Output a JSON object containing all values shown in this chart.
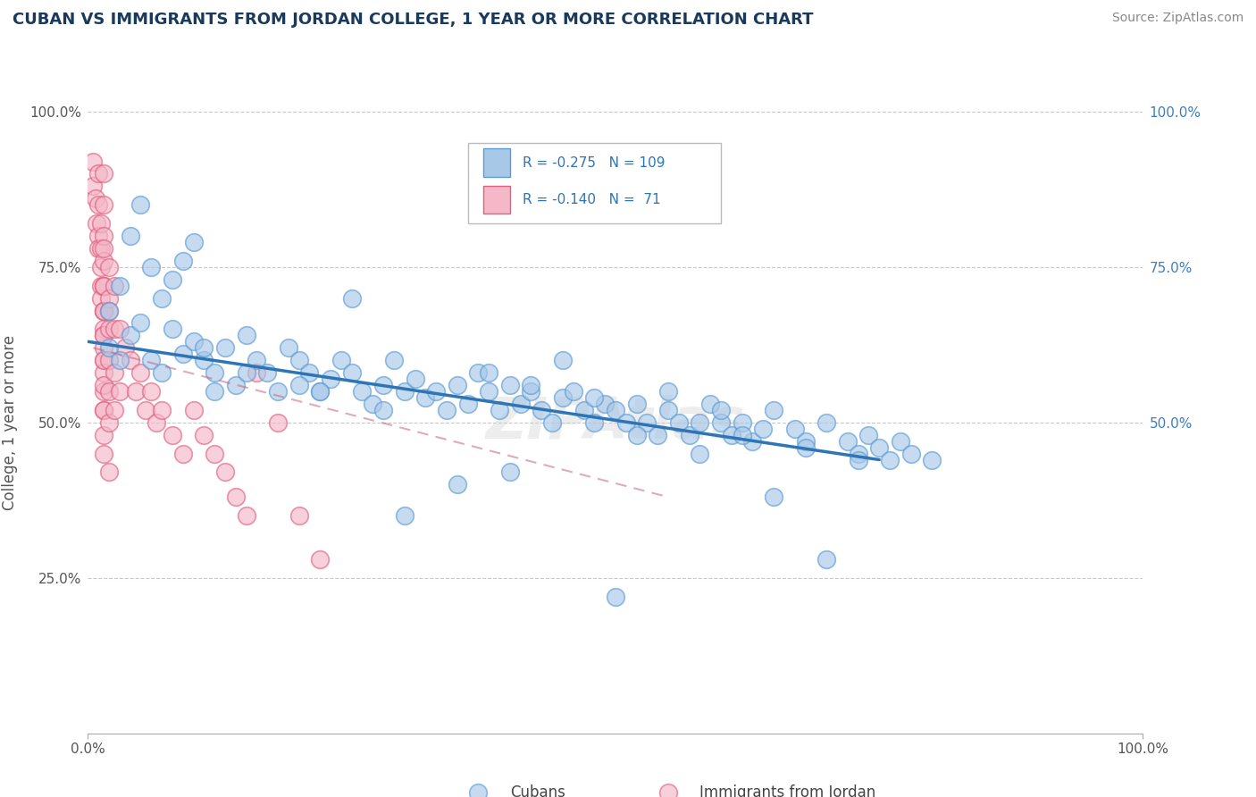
{
  "title": "CUBAN VS IMMIGRANTS FROM JORDAN COLLEGE, 1 YEAR OR MORE CORRELATION CHART",
  "source_text": "Source: ZipAtlas.com",
  "ylabel": "College, 1 year or more",
  "xlim": [
    0.0,
    1.0
  ],
  "ylim": [
    0.0,
    1.0
  ],
  "y_tick_positions": [
    0.25,
    0.5,
    0.75,
    1.0
  ],
  "y_tick_labels": [
    "25.0%",
    "50.0%",
    "75.0%",
    "100.0%"
  ],
  "right_y_tick_labels": [
    "50.0%",
    "75.0%",
    "100.0%"
  ],
  "right_y_tick_positions": [
    0.5,
    0.75,
    1.0
  ],
  "color_blue_fill": "#a8c8e8",
  "color_blue_edge": "#5b9bd5",
  "color_pink_fill": "#f4b8c8",
  "color_pink_edge": "#e06080",
  "color_line_blue": "#2e75b6",
  "color_line_pink": "#c05878",
  "watermark": "ZIPAtlas",
  "background_color": "#ffffff",
  "grid_color": "#bbbbbb",
  "cubans_x": [
    0.02,
    0.03,
    0.04,
    0.05,
    0.06,
    0.07,
    0.08,
    0.09,
    0.1,
    0.11,
    0.12,
    0.13,
    0.14,
    0.15,
    0.16,
    0.17,
    0.18,
    0.19,
    0.2,
    0.21,
    0.22,
    0.23,
    0.24,
    0.25,
    0.26,
    0.27,
    0.28,
    0.29,
    0.3,
    0.31,
    0.32,
    0.33,
    0.34,
    0.35,
    0.36,
    0.37,
    0.38,
    0.39,
    0.4,
    0.41,
    0.42,
    0.43,
    0.44,
    0.45,
    0.46,
    0.47,
    0.48,
    0.49,
    0.5,
    0.51,
    0.52,
    0.53,
    0.54,
    0.55,
    0.56,
    0.57,
    0.58,
    0.59,
    0.6,
    0.61,
    0.62,
    0.63,
    0.64,
    0.65,
    0.67,
    0.68,
    0.7,
    0.72,
    0.73,
    0.74,
    0.75,
    0.76,
    0.77,
    0.78,
    0.8,
    0.02,
    0.03,
    0.04,
    0.05,
    0.06,
    0.07,
    0.08,
    0.09,
    0.1,
    0.11,
    0.12,
    0.25,
    0.3,
    0.35,
    0.4,
    0.45,
    0.5,
    0.55,
    0.6,
    0.65,
    0.7,
    0.15,
    0.2,
    0.38,
    0.42,
    0.48,
    0.52,
    0.58,
    0.62,
    0.68,
    0.73,
    0.22,
    0.28
  ],
  "cubans_y": [
    0.62,
    0.6,
    0.64,
    0.66,
    0.6,
    0.58,
    0.65,
    0.61,
    0.63,
    0.6,
    0.58,
    0.62,
    0.56,
    0.64,
    0.6,
    0.58,
    0.55,
    0.62,
    0.6,
    0.58,
    0.55,
    0.57,
    0.6,
    0.58,
    0.55,
    0.53,
    0.56,
    0.6,
    0.55,
    0.57,
    0.54,
    0.55,
    0.52,
    0.56,
    0.53,
    0.58,
    0.55,
    0.52,
    0.56,
    0.53,
    0.55,
    0.52,
    0.5,
    0.54,
    0.55,
    0.52,
    0.5,
    0.53,
    0.52,
    0.5,
    0.53,
    0.5,
    0.48,
    0.52,
    0.5,
    0.48,
    0.5,
    0.53,
    0.5,
    0.48,
    0.5,
    0.47,
    0.49,
    0.52,
    0.49,
    0.47,
    0.5,
    0.47,
    0.45,
    0.48,
    0.46,
    0.44,
    0.47,
    0.45,
    0.44,
    0.68,
    0.72,
    0.8,
    0.85,
    0.75,
    0.7,
    0.73,
    0.76,
    0.79,
    0.62,
    0.55,
    0.7,
    0.35,
    0.4,
    0.42,
    0.6,
    0.22,
    0.55,
    0.52,
    0.38,
    0.28,
    0.58,
    0.56,
    0.58,
    0.56,
    0.54,
    0.48,
    0.45,
    0.48,
    0.46,
    0.44,
    0.55,
    0.52
  ],
  "jordan_x": [
    0.005,
    0.005,
    0.007,
    0.008,
    0.01,
    0.01,
    0.01,
    0.01,
    0.012,
    0.012,
    0.012,
    0.012,
    0.012,
    0.015,
    0.015,
    0.015,
    0.015,
    0.015,
    0.015,
    0.015,
    0.015,
    0.015,
    0.015,
    0.015,
    0.015,
    0.015,
    0.015,
    0.015,
    0.015,
    0.015,
    0.015,
    0.015,
    0.015,
    0.015,
    0.015,
    0.015,
    0.015,
    0.02,
    0.02,
    0.02,
    0.02,
    0.02,
    0.02,
    0.02,
    0.02,
    0.025,
    0.025,
    0.025,
    0.025,
    0.03,
    0.03,
    0.035,
    0.04,
    0.045,
    0.05,
    0.055,
    0.06,
    0.065,
    0.07,
    0.08,
    0.09,
    0.1,
    0.11,
    0.12,
    0.13,
    0.14,
    0.15,
    0.16,
    0.18,
    0.2,
    0.22
  ],
  "jordan_y": [
    0.92,
    0.88,
    0.86,
    0.82,
    0.9,
    0.85,
    0.8,
    0.78,
    0.82,
    0.78,
    0.72,
    0.75,
    0.7,
    0.9,
    0.85,
    0.8,
    0.76,
    0.72,
    0.68,
    0.65,
    0.62,
    0.6,
    0.58,
    0.55,
    0.52,
    0.78,
    0.72,
    0.68,
    0.64,
    0.6,
    0.56,
    0.52,
    0.48,
    0.72,
    0.68,
    0.64,
    0.45,
    0.75,
    0.7,
    0.65,
    0.6,
    0.55,
    0.5,
    0.68,
    0.42,
    0.65,
    0.58,
    0.72,
    0.52,
    0.65,
    0.55,
    0.62,
    0.6,
    0.55,
    0.58,
    0.52,
    0.55,
    0.5,
    0.52,
    0.48,
    0.45,
    0.52,
    0.48,
    0.45,
    0.42,
    0.38,
    0.35,
    0.58,
    0.5,
    0.35,
    0.28
  ],
  "blue_line_x": [
    0.0,
    0.75
  ],
  "blue_line_y": [
    0.63,
    0.44
  ],
  "pink_line_x": [
    0.005,
    0.55
  ],
  "pink_line_y": [
    0.62,
    0.38
  ]
}
